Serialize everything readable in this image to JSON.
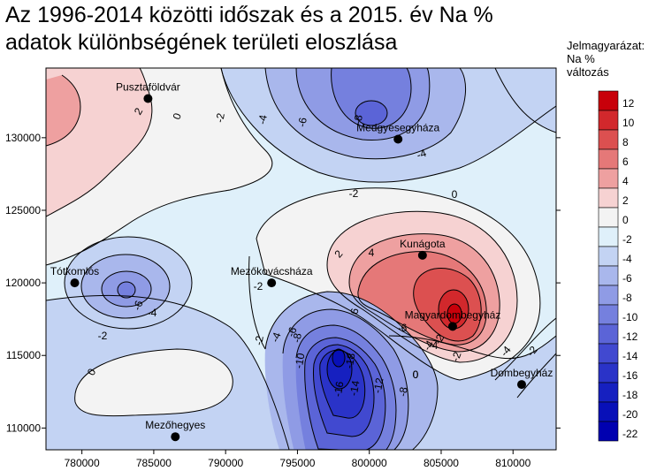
{
  "title_line1": "Az 1996-2014 közötti időszak és a 2015. év Na %",
  "title_line2": "adatok különbségének területi eloszlása",
  "legend": {
    "line1": "Jelmagyarázat:",
    "line2": "Na %",
    "line3": "változás",
    "classes": [
      {
        "label": "12",
        "color": "#c8000a"
      },
      {
        "label": "10",
        "color": "#d2282c"
      },
      {
        "label": "8",
        "color": "#dc5050"
      },
      {
        "label": "6",
        "color": "#e57878"
      },
      {
        "label": "4",
        "color": "#eea0a0"
      },
      {
        "label": "2",
        "color": "#f6d2d2"
      },
      {
        "label": "0",
        "color": "#f3f3f3"
      },
      {
        "label": "-2",
        "color": "#dff0fa"
      },
      {
        "label": "-4",
        "color": "#c3d3f3"
      },
      {
        "label": "-6",
        "color": "#a9b7ec"
      },
      {
        "label": "-8",
        "color": "#8f9be5"
      },
      {
        "label": "-10",
        "color": "#7580de"
      },
      {
        "label": "-12",
        "color": "#5b64d7"
      },
      {
        "label": "-14",
        "color": "#4149d0"
      },
      {
        "label": "-16",
        "color": "#2a33c8"
      },
      {
        "label": "-18",
        "color": "#1620c0"
      },
      {
        "label": "-20",
        "color": "#0810b8"
      },
      {
        "label": "-22",
        "color": "#0000b0"
      }
    ]
  },
  "axes": {
    "x_ticks": [
      "780000",
      "785000",
      "790000",
      "795000",
      "800000",
      "805000",
      "810000"
    ],
    "y_ticks": [
      "130000",
      "125000",
      "120000",
      "115000",
      "110000"
    ],
    "xlim": [
      777500,
      813000
    ],
    "ylim": [
      108500,
      134800
    ]
  },
  "places": [
    {
      "name": "Pusztaföldvár",
      "x": 784600,
      "y": 132700
    },
    {
      "name": "Medgyesegyháza",
      "x": 802000,
      "y": 129900
    },
    {
      "name": "Tótkomlós",
      "x": 779500,
      "y": 120000
    },
    {
      "name": "Mezőkovácsháza",
      "x": 793200,
      "y": 120000
    },
    {
      "name": "Kunágota",
      "x": 803700,
      "y": 121900
    },
    {
      "name": "Magyardombegyház",
      "x": 805800,
      "y": 117000
    },
    {
      "name": "Dombegyház",
      "x": 810600,
      "y": 113000
    },
    {
      "name": "Mezőhegyes",
      "x": 786500,
      "y": 109400
    }
  ],
  "contour_labels": [
    "2",
    "0",
    "-2",
    "-4",
    "-6",
    "-8",
    "-4",
    "-2",
    "0",
    "2",
    "4",
    "6",
    "-6",
    "-4",
    "-2",
    "-2",
    "-4",
    "-6",
    "-2",
    "0",
    "-2",
    "-4",
    "-8",
    "-10",
    "-18",
    "-16",
    "-14",
    "-12",
    "-8",
    "-6",
    "-4",
    "-2",
    "0",
    "-2",
    "-4",
    "0"
  ]
}
